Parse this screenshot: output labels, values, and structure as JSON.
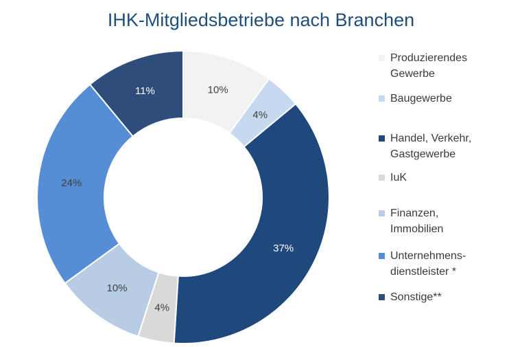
{
  "chart_data": {
    "type": "pie",
    "title": "IHK-Mitgliedsbetriebe nach Branchen",
    "hole": true,
    "legend_position": "right",
    "value_unit": "%",
    "slices": [
      {
        "label": "Produzierendes\nGewerbe",
        "value": 10,
        "display": "10%",
        "color": "#f2f2f2",
        "label_color": "#404040"
      },
      {
        "label": "Baugewerbe",
        "value": 4,
        "display": "4%",
        "color": "#c6d9f1",
        "label_color": "#404040"
      },
      {
        "label": "Handel, Verkehr,\nGastgewerbe",
        "value": 37,
        "display": "37%",
        "color": "#1f497d",
        "label_color": "#ffffff"
      },
      {
        "label": "IuK",
        "value": 4,
        "display": "4%",
        "color": "#d9d9d9",
        "label_color": "#404040"
      },
      {
        "label": "Finanzen,\nImmobilien",
        "value": 10,
        "display": "10%",
        "color": "#b8cce4",
        "label_color": "#404040"
      },
      {
        "label": "Unternehmens-\ndienstleister *",
        "value": 24,
        "display": "24%",
        "color": "#558ed5",
        "label_color": "#404040"
      },
      {
        "label": "Sonstige**",
        "value": 11,
        "display": "11%",
        "color": "#2e4d7b",
        "label_color": "#ffffff"
      }
    ]
  }
}
